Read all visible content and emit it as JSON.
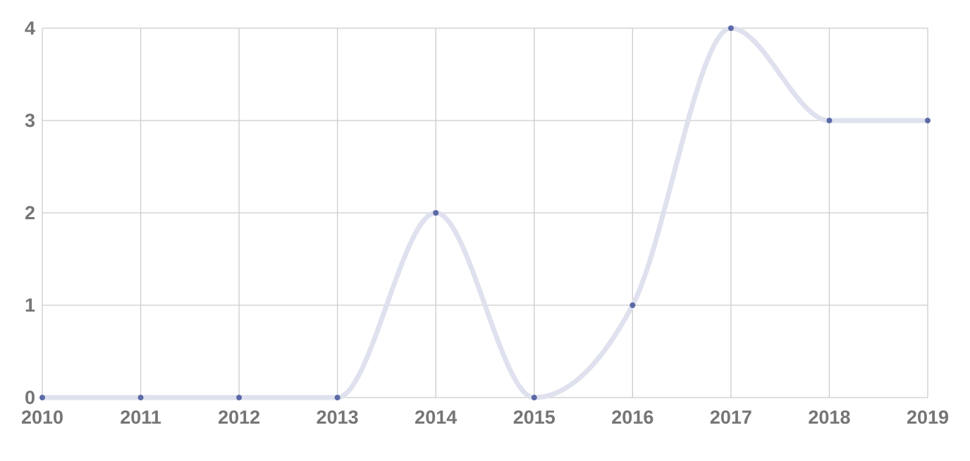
{
  "chart_data": {
    "type": "line",
    "smooth": true,
    "x": [
      "2010",
      "2011",
      "2012",
      "2013",
      "2014",
      "2015",
      "2016",
      "2017",
      "2018",
      "2019"
    ],
    "series": [
      {
        "values": [
          0,
          0,
          0,
          0,
          2,
          0,
          1,
          4,
          3,
          3
        ]
      }
    ],
    "y_ticks": [
      "0",
      "1",
      "2",
      "3",
      "4"
    ],
    "ylim": [
      0,
      4
    ],
    "grid": true,
    "legend": "none",
    "title": "",
    "xlabel": "",
    "ylabel": "",
    "colors": {
      "line": "#dfe1ee",
      "marker": "#5b6aa6",
      "grid": "#cccccc",
      "tick_text": "#757575"
    }
  }
}
